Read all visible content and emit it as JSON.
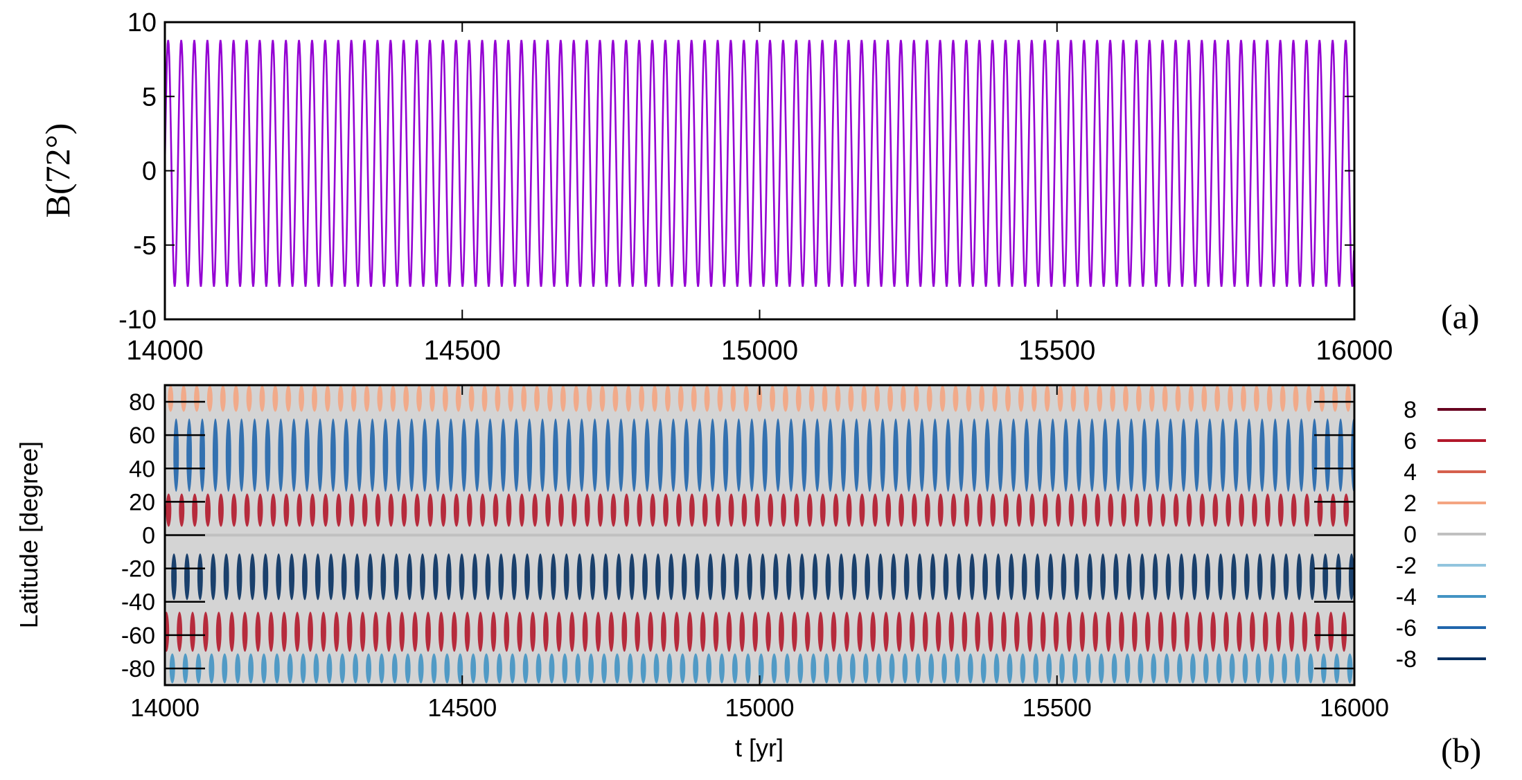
{
  "chart_data": [
    {
      "id": "a",
      "type": "line",
      "panel_label": "(a)",
      "ylabel": "B(72°)",
      "xlabel": "",
      "xlim": [
        14000,
        16000
      ],
      "ylim": [
        -10,
        10
      ],
      "xticks": [
        "14000",
        "14500",
        "15000",
        "15500",
        "16000"
      ],
      "yticks": [
        "10",
        "5",
        "0",
        "-5",
        "-10"
      ],
      "series": [
        {
          "color": "#9400d3",
          "period_yr": 22,
          "max": 8.8,
          "min": -7.8,
          "x_start": 14000,
          "x_end": 16000
        }
      ],
      "grid": false
    },
    {
      "id": "b",
      "type": "heatmap",
      "panel_label": "(b)",
      "xlabel": "t [yr]",
      "ylabel": "Latitude [degree]",
      "xlim": [
        14000,
        16000
      ],
      "ylim": [
        -90,
        90
      ],
      "xticks": [
        "14000",
        "14500",
        "15000",
        "15500",
        "16000"
      ],
      "yticks": [
        "80",
        "60",
        "40",
        "20",
        "0",
        "-20",
        "-40",
        "-60",
        "-80"
      ],
      "period_yr": 22,
      "legend_position": "right",
      "legend": [
        {
          "label": "8",
          "color": "#67001f"
        },
        {
          "label": "6",
          "color": "#b2182b"
        },
        {
          "label": "4",
          "color": "#d6604d"
        },
        {
          "label": "2",
          "color": "#f4a582"
        },
        {
          "label": "0",
          "color": "#c0c0c0"
        },
        {
          "label": "-2",
          "color": "#92c5de"
        },
        {
          "label": "-4",
          "color": "#4393c3"
        },
        {
          "label": "-6",
          "color": "#2166ac"
        },
        {
          "label": "-8",
          "color": "#053061"
        }
      ],
      "bands": [
        {
          "lat_center": 82,
          "lat_halfwidth": 8,
          "amplitude": 2,
          "color": "#f4a582"
        },
        {
          "lat_center": 48,
          "lat_halfwidth": 22,
          "amplitude": -5,
          "color": "#2166ac"
        },
        {
          "lat_center": 15,
          "lat_halfwidth": 10,
          "amplitude": 6,
          "color": "#b2182b"
        },
        {
          "lat_center": -25,
          "lat_halfwidth": 14,
          "amplitude": -8,
          "color": "#053061"
        },
        {
          "lat_center": -58,
          "lat_halfwidth": 12,
          "amplitude": 6,
          "color": "#b2182b"
        },
        {
          "lat_center": -80,
          "lat_halfwidth": 9,
          "amplitude": -4,
          "color": "#4393c3"
        }
      ]
    }
  ]
}
